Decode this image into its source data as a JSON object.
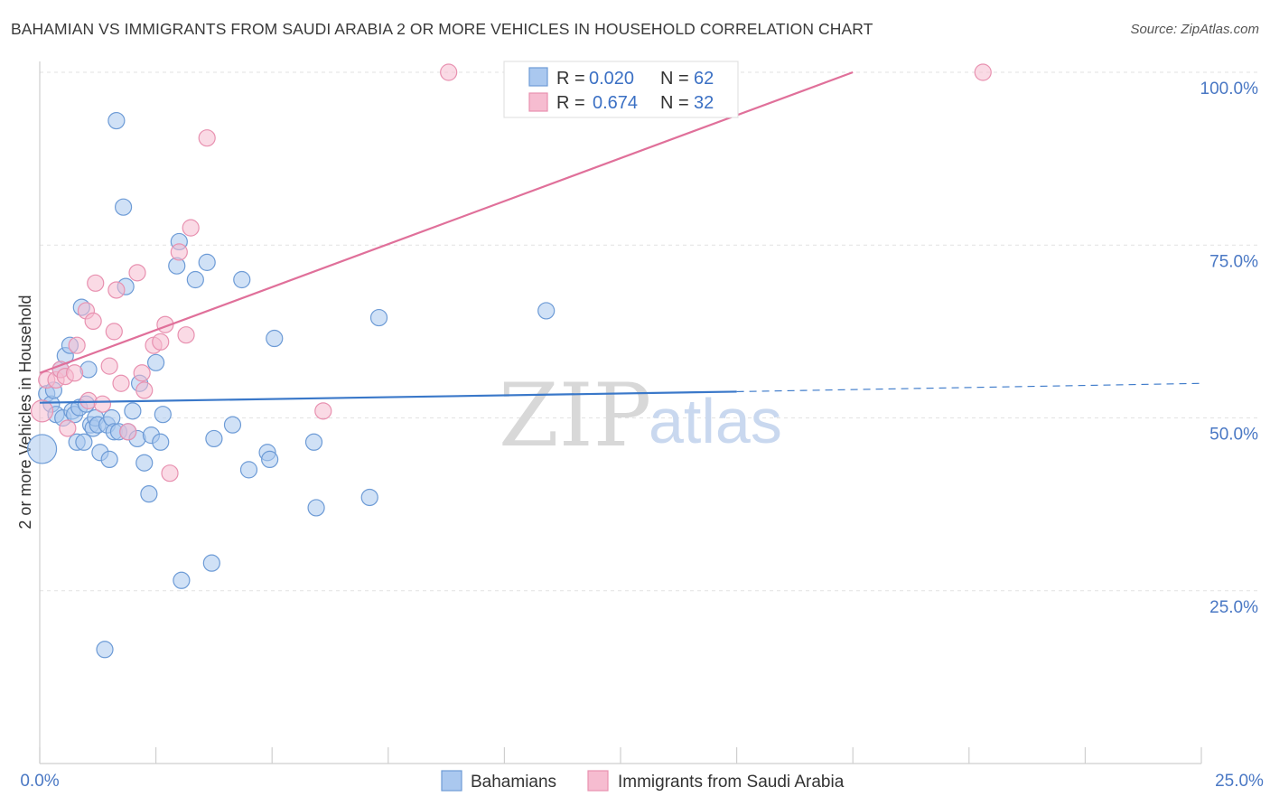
{
  "header": {
    "title": "BAHAMIAN VS IMMIGRANTS FROM SAUDI ARABIA 2 OR MORE VEHICLES IN HOUSEHOLD CORRELATION CHART",
    "source": "Source: ZipAtlas.com"
  },
  "watermark": {
    "zip": "ZIP",
    "atlas": "atlas"
  },
  "chart_data": {
    "type": "scatter",
    "title": "BAHAMIAN VS IMMIGRANTS FROM SAUDI ARABIA 2 OR MORE VEHICLES IN HOUSEHOLD CORRELATION CHART",
    "xlabel": "",
    "ylabel": "2 or more Vehicles in Household",
    "xlim": [
      0,
      25
    ],
    "ylim": [
      0,
      102
    ],
    "x_tick_labels": {
      "min": "0.0%",
      "max": "25.0%"
    },
    "y_ticks": [
      {
        "value": 25,
        "label": "25.0%"
      },
      {
        "value": 50,
        "label": "50.0%"
      },
      {
        "value": 75,
        "label": "75.0%"
      },
      {
        "value": 100,
        "label": "100.0%"
      }
    ],
    "legend": [
      {
        "r_label": "R =",
        "r_value": "0.020",
        "n_label": "N =",
        "n_value": "62"
      },
      {
        "r_label": "R =",
        "r_value": "0.674",
        "n_label": "N =",
        "n_value": "32"
      }
    ],
    "colors": {
      "blue_fill": "#aac8ef",
      "blue_stroke": "#6d9bd6",
      "blue_line": "#3a78c9",
      "pink_fill": "#f6bcd0",
      "pink_stroke": "#e891b0",
      "pink_line": "#e0709a"
    },
    "series": [
      {
        "name": "Bahamians",
        "trend": {
          "x0": 0,
          "y0": 52.2,
          "x1": 15,
          "y1": 53.8,
          "dash_to_x": 25,
          "dash_to_y": 55
        },
        "points": [
          [
            0.05,
            45.5,
            16
          ],
          [
            0.15,
            53.5,
            9
          ],
          [
            0.25,
            52,
            9
          ],
          [
            0.3,
            54,
            9
          ],
          [
            0.35,
            50.5,
            9
          ],
          [
            0.45,
            57,
            9
          ],
          [
            0.5,
            50,
            9
          ],
          [
            0.55,
            59,
            9
          ],
          [
            0.65,
            60.5,
            9
          ],
          [
            0.7,
            51,
            9
          ],
          [
            0.75,
            50.5,
            9
          ],
          [
            0.8,
            46.5,
            9
          ],
          [
            0.85,
            51.5,
            9
          ],
          [
            0.9,
            66,
            9
          ],
          [
            0.95,
            46.5,
            9
          ],
          [
            1.0,
            52,
            9
          ],
          [
            1.05,
            57,
            9
          ],
          [
            1.1,
            49,
            9
          ],
          [
            1.15,
            48.5,
            9
          ],
          [
            1.2,
            50,
            9
          ],
          [
            1.25,
            49,
            9
          ],
          [
            1.3,
            45,
            9
          ],
          [
            1.4,
            16.5,
            9
          ],
          [
            1.45,
            49,
            9
          ],
          [
            1.5,
            44,
            9
          ],
          [
            1.55,
            50,
            9
          ],
          [
            1.6,
            48,
            9
          ],
          [
            1.65,
            93,
            9
          ],
          [
            1.7,
            48,
            9
          ],
          [
            1.8,
            80.5,
            9
          ],
          [
            1.85,
            69,
            9
          ],
          [
            1.9,
            48,
            9
          ],
          [
            2.0,
            51,
            9
          ],
          [
            2.1,
            47,
            9
          ],
          [
            2.15,
            55,
            9
          ],
          [
            2.25,
            43.5,
            9
          ],
          [
            2.35,
            39,
            9
          ],
          [
            2.4,
            47.5,
            9
          ],
          [
            2.5,
            58,
            9
          ],
          [
            2.6,
            46.5,
            9
          ],
          [
            2.65,
            50.5,
            9
          ],
          [
            2.95,
            72,
            9
          ],
          [
            3.0,
            75.5,
            9
          ],
          [
            3.05,
            26.5,
            9
          ],
          [
            3.35,
            70,
            9
          ],
          [
            3.6,
            72.5,
            9
          ],
          [
            3.7,
            29,
            9
          ],
          [
            3.75,
            47,
            9
          ],
          [
            4.15,
            49,
            9
          ],
          [
            4.35,
            70,
            9
          ],
          [
            4.5,
            42.5,
            9
          ],
          [
            4.9,
            45,
            9
          ],
          [
            4.95,
            44,
            9
          ],
          [
            5.05,
            61.5,
            9
          ],
          [
            5.9,
            46.5,
            9
          ],
          [
            5.95,
            37,
            9
          ],
          [
            7.1,
            38.5,
            9
          ],
          [
            7.3,
            64.5,
            9
          ],
          [
            10.9,
            65.5,
            9
          ]
        ]
      },
      {
        "name": "Immigrants from Saudi Arabia",
        "trend": {
          "x0": 0,
          "y0": 56.5,
          "x1": 17.5,
          "y1": 100
        },
        "points": [
          [
            0.05,
            51,
            12
          ],
          [
            0.15,
            55.5,
            9
          ],
          [
            0.35,
            55.5,
            9
          ],
          [
            0.45,
            57,
            9
          ],
          [
            0.55,
            56,
            9
          ],
          [
            0.6,
            48.5,
            9
          ],
          [
            0.75,
            56.5,
            9
          ],
          [
            0.8,
            60.5,
            9
          ],
          [
            1.0,
            65.5,
            9
          ],
          [
            1.05,
            52.5,
            9
          ],
          [
            1.15,
            64,
            9
          ],
          [
            1.2,
            69.5,
            9
          ],
          [
            1.35,
            52,
            9
          ],
          [
            1.5,
            57.5,
            9
          ],
          [
            1.6,
            62.5,
            9
          ],
          [
            1.65,
            68.5,
            9
          ],
          [
            1.75,
            55,
            9
          ],
          [
            1.9,
            48,
            9
          ],
          [
            2.1,
            71,
            9
          ],
          [
            2.2,
            56.5,
            9
          ],
          [
            2.25,
            54,
            9
          ],
          [
            2.45,
            60.5,
            9
          ],
          [
            2.6,
            61,
            9
          ],
          [
            2.7,
            63.5,
            9
          ],
          [
            2.8,
            42,
            9
          ],
          [
            3.0,
            74,
            9
          ],
          [
            3.15,
            62,
            9
          ],
          [
            3.25,
            77.5,
            9
          ],
          [
            3.6,
            90.5,
            9
          ],
          [
            6.1,
            51,
            9
          ],
          [
            8.8,
            100,
            9
          ],
          [
            20.3,
            100,
            9
          ]
        ]
      }
    ]
  }
}
